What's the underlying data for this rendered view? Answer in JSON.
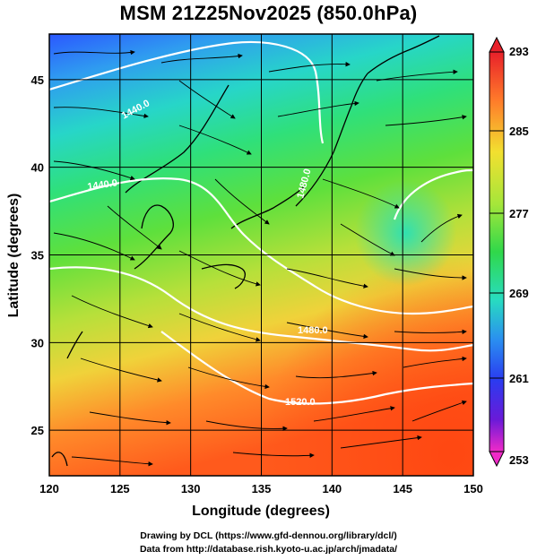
{
  "title": "MSM 21Z25Nov2025 (850.0hPa)",
  "chart_data": {
    "type": "heatmap",
    "title": "MSM 21Z25Nov2025 (850.0hPa)",
    "xlabel": "Longitude (degrees)",
    "ylabel": "Latitude  (degrees)",
    "xlim": [
      120,
      150
    ],
    "ylim": [
      22.4,
      47.6
    ],
    "x_ticks": [
      "120",
      "125",
      "130",
      "135",
      "140",
      "145",
      "150"
    ],
    "y_ticks": [
      "25",
      "30",
      "35",
      "40",
      "45"
    ],
    "colorbar": {
      "ticks": [
        "293",
        "285",
        "277",
        "269",
        "261",
        "253"
      ],
      "range": [
        253,
        293
      ]
    },
    "contour_labels": [
      "1440.0",
      "1440.0",
      "1480.0",
      "1520.0",
      "1480.0"
    ]
  },
  "credits": {
    "line1": "Drawing by DCL (https://www.gfd-dennou.org/library/dcl/)",
    "line2": "Data from http://database.rish.kyoto-u.ac.jp/arch/jmadata/"
  }
}
